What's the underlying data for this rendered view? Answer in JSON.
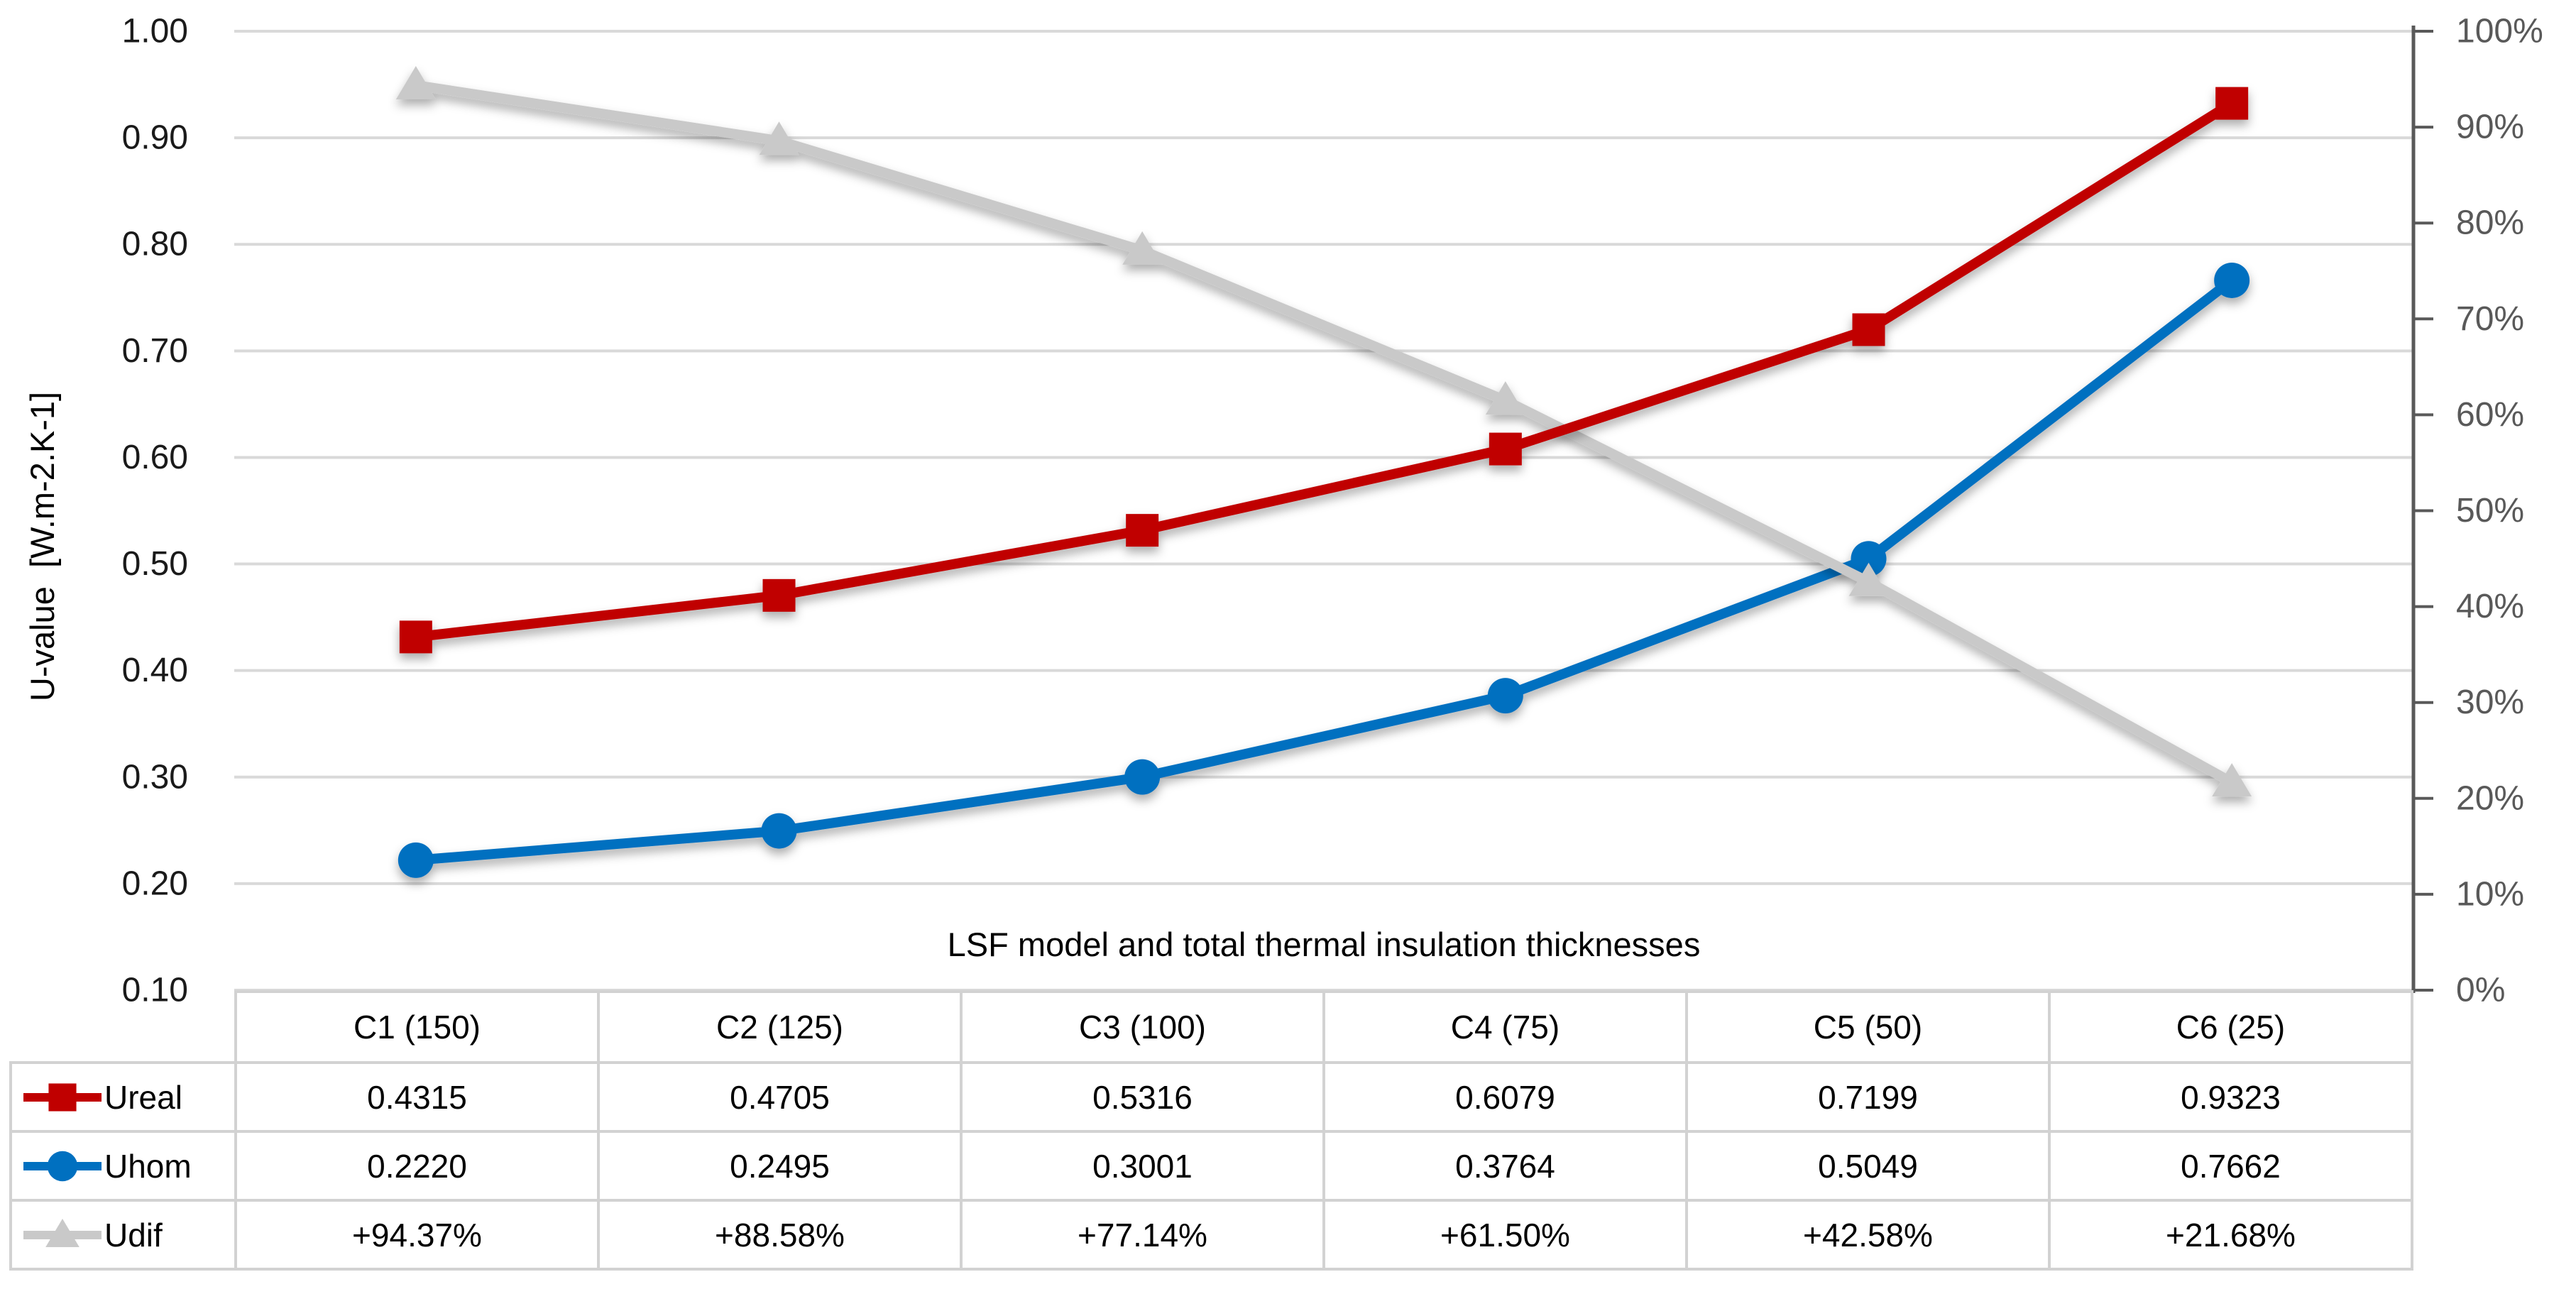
{
  "chart_data": {
    "type": "line",
    "title": "",
    "xlabel": "LSF model and total thermal insulation thicknesses",
    "ylabel": "U-value  [W.m-2.K-1]",
    "categories": [
      "C1 (150)",
      "C2 (125)",
      "C3 (100)",
      "C4 (75)",
      "C5 (50)",
      "C6 (25)"
    ],
    "left_axis": {
      "min": 0.1,
      "max": 1.0,
      "step": 0.1,
      "tick_labels": [
        "1.00",
        "0.90",
        "0.80",
        "0.70",
        "0.60",
        "0.50",
        "0.40",
        "0.30",
        "0.20",
        "0.10"
      ]
    },
    "right_axis": {
      "min": 0,
      "max": 100,
      "step": 10,
      "tick_labels": [
        "100%",
        "90%",
        "80%",
        "70%",
        "60%",
        "50%",
        "40%",
        "30%",
        "20%",
        "10%",
        "0%"
      ]
    },
    "grid": true,
    "legend_position": "data-table-left-column",
    "series": [
      {
        "name": "Ureal",
        "axis": "left",
        "marker": "square",
        "color": "#C00000",
        "values": [
          0.4315,
          0.4705,
          0.5316,
          0.6079,
          0.7199,
          0.9323
        ],
        "labels": [
          "0.4315",
          "0.4705",
          "0.5316",
          "0.6079",
          "0.7199",
          "0.9323"
        ]
      },
      {
        "name": "Uhom",
        "axis": "left",
        "marker": "circle",
        "color": "#0070C0",
        "values": [
          0.222,
          0.2495,
          0.3001,
          0.3764,
          0.5049,
          0.7662
        ],
        "labels": [
          "0.2220",
          "0.2495",
          "0.3001",
          "0.3764",
          "0.5049",
          "0.7662"
        ]
      },
      {
        "name": "Udif",
        "axis": "right",
        "marker": "triangle",
        "color": "#C9C9C9",
        "values": [
          94.37,
          88.58,
          77.14,
          61.5,
          42.58,
          21.68
        ],
        "labels": [
          "+94.37%",
          "+88.58%",
          "+77.14%",
          "+61.50%",
          "+42.58%",
          "+21.68%"
        ]
      }
    ],
    "style_colors": {
      "gridline": "#D9D9D9",
      "right_axis_line": "#595959",
      "left_tick_text": "#1a1a1a",
      "right_tick_text": "#595959",
      "table_border": "#D2D2D2"
    }
  }
}
